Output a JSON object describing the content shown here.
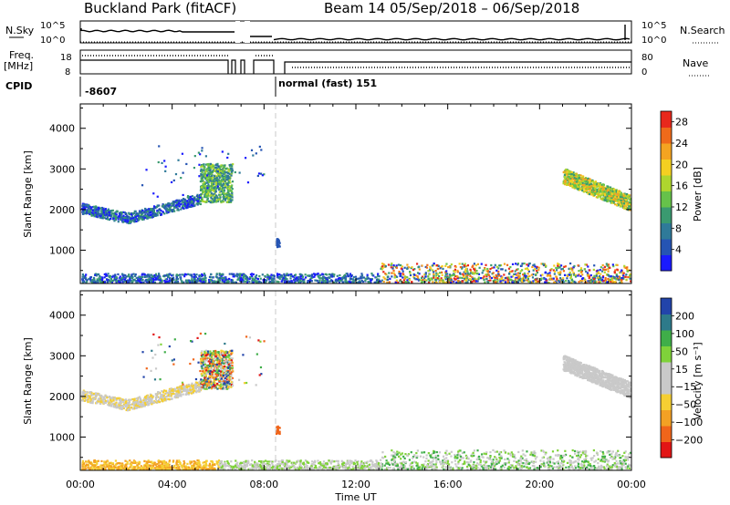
{
  "header": {
    "station": "Buckland Park (fitACF)",
    "beam_date": "Beam 14  05/Sep/2018 – 06/Sep/2018"
  },
  "strip": {
    "nsky_label": "N.Sky",
    "nsky_top": "10^5",
    "nsky_bottom": "10^0",
    "nsearch_label": "N.Search",
    "nsearch_top": "10^5",
    "nsearch_bottom": "10^0",
    "freq_label_1": "Freq.",
    "freq_label_2": "[MHz]",
    "freq_top": "18",
    "freq_bottom": "8",
    "nave_top": "80",
    "nave_bottom": "0",
    "nave_label": "Nave",
    "cpid_label": "CPID",
    "cpid_1": "-8607",
    "cpid_2": "normal (fast) 151"
  },
  "colors": {
    "power": [
      "#1a1aff",
      "#2554b3",
      "#2f7a99",
      "#3a9a70",
      "#66c24a",
      "#aed62e",
      "#f4d021",
      "#f4a421",
      "#ef6a1a",
      "#e8281c"
    ],
    "velocity": [
      "#e21515",
      "#f0651a",
      "#f3a124",
      "#f5cf33",
      "#c9c9c9",
      "#c9c9c9",
      "#7fd23a",
      "#3fae49",
      "#2d7a8a",
      "#2244aa"
    ]
  },
  "chart_data": [
    {
      "type": "heatmap",
      "title": "Power",
      "ylabel": "Slant Range [km]",
      "xlabel": "Time UT",
      "x_ticks": [
        "00:00",
        "04:00",
        "08:00",
        "12:00",
        "16:00",
        "20:00",
        "00:00"
      ],
      "y_ticks": [
        1000,
        2000,
        3000,
        4000
      ],
      "ylim": [
        180,
        4600
      ],
      "xlim_hours": [
        0,
        24
      ],
      "colorbar_label": "Power [dB]",
      "colorbar_ticks": [
        "4",
        "8",
        "12",
        "16",
        "20",
        "24",
        "28"
      ],
      "colorbar_range": [
        0,
        30
      ]
    },
    {
      "type": "heatmap",
      "title": "Velocity",
      "ylabel": "Slant Range [km]",
      "xlabel": "Time UT",
      "x_ticks": [
        "00:00",
        "04:00",
        "08:00",
        "12:00",
        "16:00",
        "20:00",
        "00:00"
      ],
      "y_ticks": [
        1000,
        2000,
        3000,
        4000
      ],
      "ylim": [
        180,
        4600
      ],
      "xlim_hours": [
        0,
        24
      ],
      "colorbar_label": "Velocity [m s⁻¹]",
      "colorbar_ticks": [
        "200",
        "100",
        "50",
        "15",
        "−15",
        "−50",
        "−100",
        "−200"
      ],
      "colorbar_range": [
        -250,
        250
      ]
    }
  ],
  "x_axis_label": "Time UT"
}
